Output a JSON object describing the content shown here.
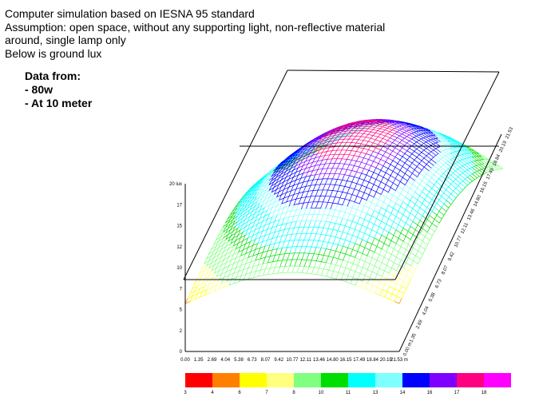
{
  "header": {
    "line1": "Computer simulation based on IESNA 95 standard",
    "line2": "Assumption:  open space, without any supporting light, non-reflective material",
    "line3": "around, single lamp only",
    "line4": "Below is ground lux"
  },
  "data_from": {
    "title": "Data from:",
    "items": [
      "- 80w",
      "- At 10 meter"
    ]
  },
  "axes": {
    "lux_ticks": [
      "0",
      "2",
      "5",
      "7",
      "10",
      "12",
      "15",
      "17",
      "20 lux"
    ],
    "x_ticks": [
      "0.00",
      "1.35",
      "2.69",
      "4.04",
      "5.38",
      "6.73",
      "8.07",
      "9.42",
      "10.77",
      "12.11",
      "13.46",
      "14.80",
      "16.15",
      "17.49",
      "18.84",
      "20.19",
      "21.53 m"
    ],
    "depth_ticks": [
      "0.00 m",
      "1.35",
      "2.69",
      "4.04",
      "5.38",
      "6.73",
      "8.07",
      "9.42",
      "10.77",
      "12.11",
      "13.46",
      "14.80",
      "16.15",
      "17.49",
      "18.84",
      "20.19",
      "21.53"
    ]
  },
  "color_scale": [
    {
      "label": "3",
      "color": "#ff0000"
    },
    {
      "label": "4",
      "color": "#ff8000"
    },
    {
      "label": "6",
      "color": "#ffff00"
    },
    {
      "label": "7",
      "color": "#ffff80"
    },
    {
      "label": "8",
      "color": "#80ff80"
    },
    {
      "label": "10",
      "color": "#00dd00"
    },
    {
      "label": "11",
      "color": "#00ffff"
    },
    {
      "label": "13",
      "color": "#80ffff"
    },
    {
      "label": "14",
      "color": "#0000ff"
    },
    {
      "label": "16",
      "color": "#8000ff"
    },
    {
      "label": "17",
      "color": "#ff0080"
    },
    {
      "label": "18",
      "color": "#ff00ff"
    }
  ]
}
